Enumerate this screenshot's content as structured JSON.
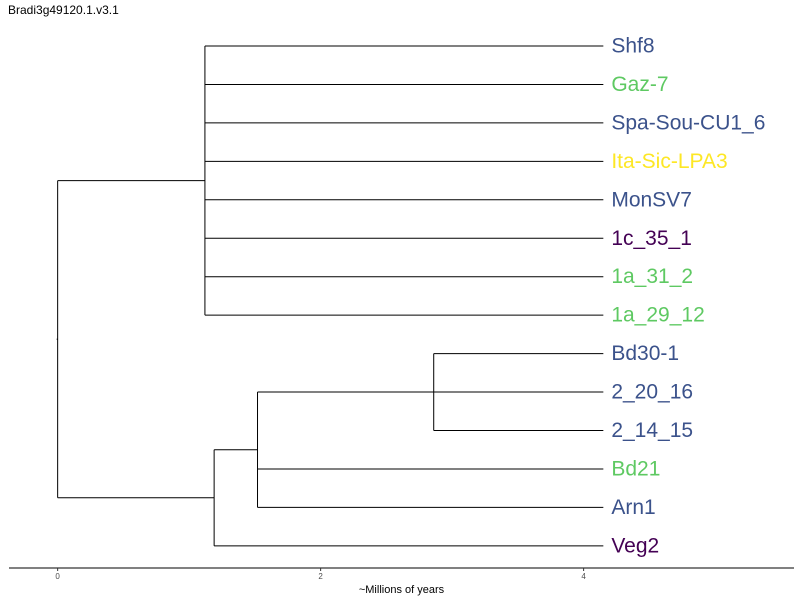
{
  "title": "Bradi3g49120.1.v3.1",
  "chart_data": {
    "type": "dendrogram",
    "title": "Bradi3g49120.1.v3.1",
    "xlabel": "~Millions of years",
    "ylabel": "",
    "xlim": [
      -0.37,
      5.6
    ],
    "x_ticks": [
      "0",
      "2",
      "4"
    ],
    "x_tick_values": [
      0,
      2,
      4
    ],
    "grid": false,
    "legend": "none",
    "leaf_depth": 4.15,
    "colors": {
      "blue": "#3b528b",
      "green": "#5ec962",
      "yellow": "#fde725",
      "purple": "#440154"
    },
    "leaves": [
      {
        "label": "Shf8",
        "color": "#3b528b"
      },
      {
        "label": "Gaz-7",
        "color": "#5ec962"
      },
      {
        "label": "Spa-Sou-CU1_6",
        "color": "#3b528b"
      },
      {
        "label": "Ita-Sic-LPA3",
        "color": "#fde725"
      },
      {
        "label": "MonSV7",
        "color": "#3b528b"
      },
      {
        "label": "1c_35_1",
        "color": "#440154"
      },
      {
        "label": "1a_31_2",
        "color": "#5ec962"
      },
      {
        "label": "1a_29_12",
        "color": "#5ec962"
      },
      {
        "label": "Bd30-1",
        "color": "#3b528b"
      },
      {
        "label": "2_20_16",
        "color": "#3b528b"
      },
      {
        "label": "2_14_15",
        "color": "#3b528b"
      },
      {
        "label": "Bd21",
        "color": "#5ec962"
      },
      {
        "label": "Arn1",
        "color": "#3b528b"
      },
      {
        "label": "Veg2",
        "color": "#440154"
      }
    ],
    "tree": {
      "x": 0,
      "children": [
        {
          "x": 1.12,
          "children": [
            {
              "leaf": 0
            },
            {
              "leaf": 1
            },
            {
              "leaf": 2
            },
            {
              "leaf": 3
            },
            {
              "leaf": 4
            },
            {
              "leaf": 5
            },
            {
              "leaf": 6
            },
            {
              "leaf": 7
            }
          ]
        },
        {
          "x": 1.19,
          "children": [
            {
              "x": 1.52,
              "children": [
                {
                  "x": 2.86,
                  "children": [
                    {
                      "leaf": 8
                    },
                    {
                      "leaf": 9
                    },
                    {
                      "leaf": 10
                    }
                  ]
                },
                {
                  "leaf": 11
                },
                {
                  "leaf": 12
                }
              ]
            },
            {
              "leaf": 13
            }
          ]
        }
      ]
    }
  }
}
